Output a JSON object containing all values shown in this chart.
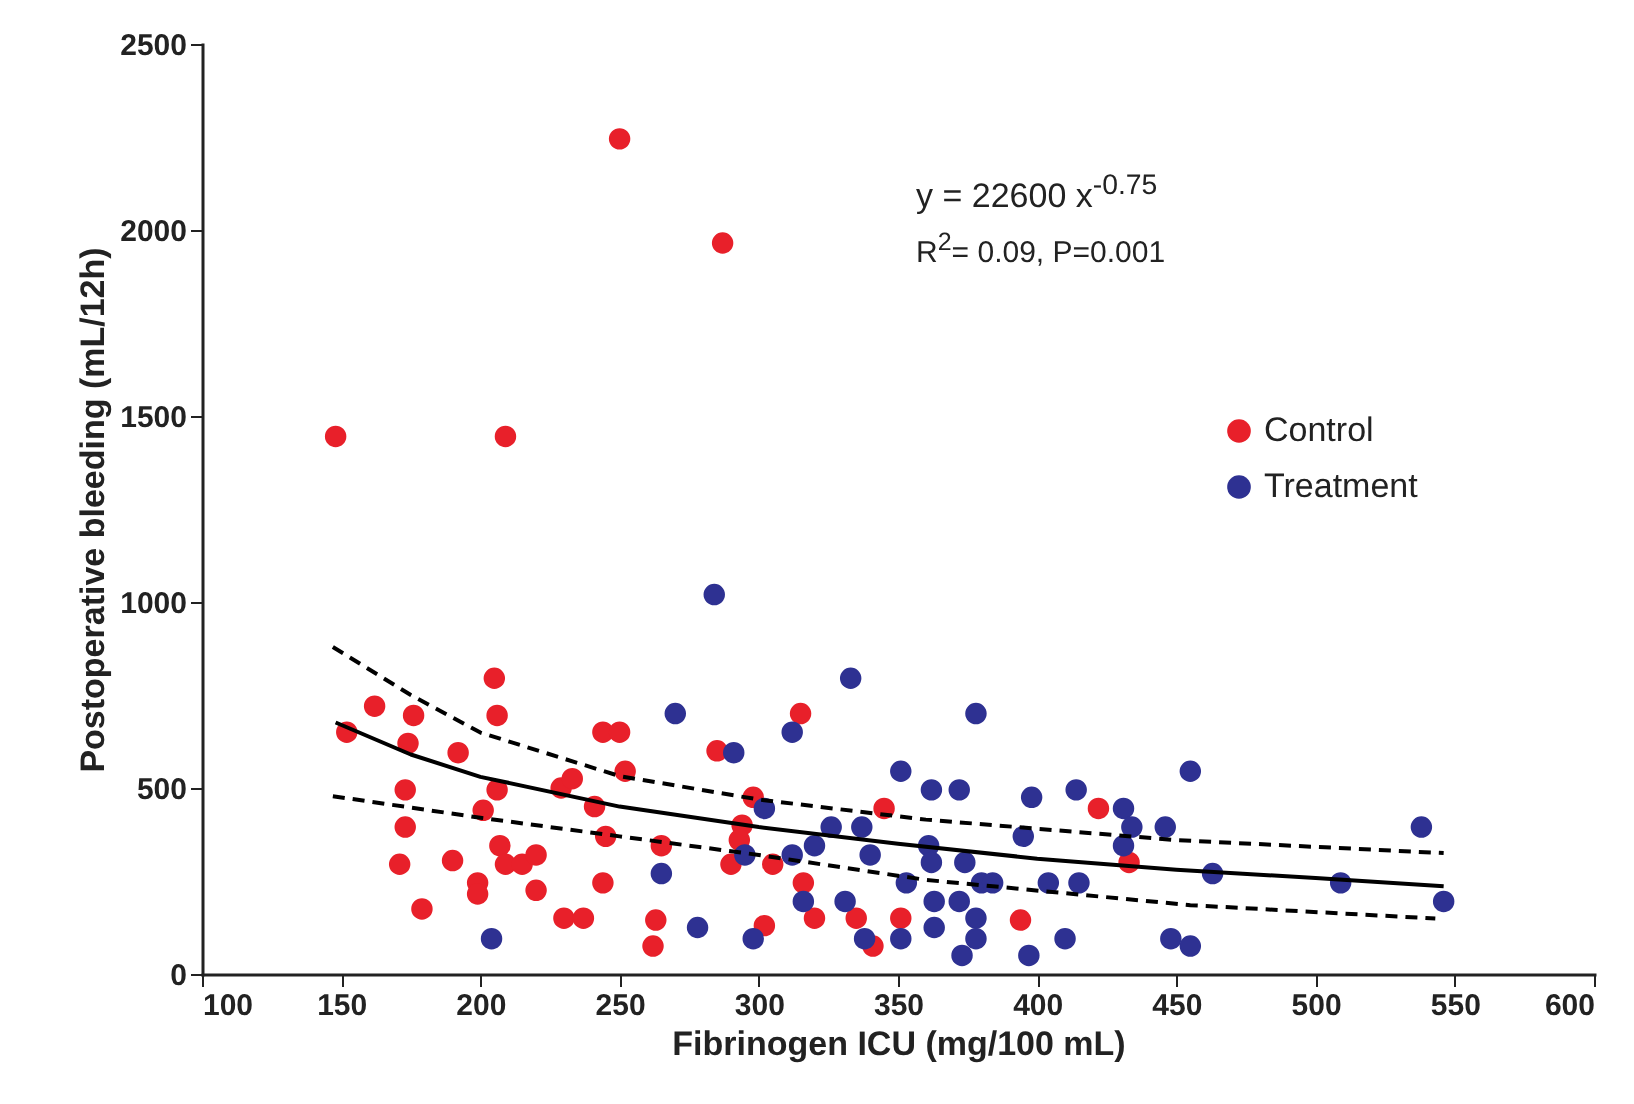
{
  "chart_data": {
    "type": "scatter",
    "xlabel": "Fibrinogen ICU (mg/100 mL)",
    "ylabel": "Postoperative bleeding (mL/12h)",
    "xlim": [
      100,
      600
    ],
    "xticks": [
      100,
      150,
      200,
      250,
      300,
      350,
      400,
      450,
      500,
      550,
      600
    ],
    "ylim": [
      0,
      2500
    ],
    "yticks": [
      0,
      500,
      1000,
      1500,
      2000,
      2500
    ],
    "grid": false,
    "legend": "top right",
    "annotations": [
      "y = 22600 x$^{-0.75}$",
      "R$^{2}$= 0.09, P=0.001"
    ],
    "series": [
      {
        "name": "Control",
        "color": "#e8202a",
        "marker": "circle",
        "x": [
          148,
          209,
          250,
          287,
          152,
          162,
          176,
          174,
          173,
          173,
          171,
          179,
          190,
          192,
          205,
          206,
          206,
          201,
          207,
          209,
          215,
          220,
          199,
          199,
          220,
          230,
          237,
          229,
          233,
          244,
          250,
          252,
          241,
          245,
          244,
          265,
          263,
          262,
          315,
          285,
          298,
          294,
          293,
          290,
          305,
          316,
          320,
          302,
          335,
          341,
          345,
          351,
          394,
          422,
          433
        ],
        "values": [
          1445,
          1445,
          2245,
          1965,
          650,
          720,
          695,
          620,
          495,
          395,
          295,
          175,
          305,
          595,
          795,
          695,
          495,
          440,
          345,
          295,
          295,
          320,
          245,
          215,
          225,
          150,
          150,
          500,
          525,
          650,
          650,
          545,
          450,
          370,
          245,
          345,
          145,
          75,
          700,
          600,
          475,
          400,
          360,
          295,
          295,
          245,
          150,
          130,
          150,
          75,
          445,
          150,
          145,
          445,
          300
        ]
      },
      {
        "name": "Treatment",
        "color": "#2e3192",
        "marker": "circle",
        "x": [
          284,
          270,
          333,
          378,
          312,
          291,
          302,
          295,
          265,
          278,
          298,
          312,
          320,
          326,
          337,
          340,
          316,
          331,
          338,
          351,
          351,
          362,
          372,
          361,
          362,
          374,
          353,
          363,
          372,
          363,
          373,
          378,
          378,
          380,
          384,
          395,
          398,
          397,
          404,
          415,
          410,
          414,
          431,
          434,
          431,
          446,
          455,
          463,
          509,
          538,
          546,
          448,
          455,
          204
        ],
        "values": [
          1020,
          700,
          795,
          700,
          650,
          595,
          445,
          320,
          270,
          125,
          95,
          320,
          345,
          395,
          395,
          320,
          195,
          195,
          95,
          95,
          545,
          495,
          495,
          345,
          300,
          300,
          245,
          195,
          195,
          125,
          50,
          150,
          95,
          245,
          245,
          370,
          475,
          50,
          245,
          245,
          95,
          495,
          445,
          395,
          345,
          395,
          545,
          270,
          245,
          395,
          195,
          95,
          75,
          95
        ]
      },
      {
        "type": "line",
        "color": "#000000",
        "line_style": "solid",
        "x": [
          148,
          175,
          200,
          250,
          300,
          350,
          400,
          450,
          500,
          546
        ],
        "values": [
          676,
          590,
          530,
          450,
          395,
          350,
          310,
          280,
          258,
          236
        ]
      },
      {
        "type": "line",
        "color": "#000000",
        "line_style": "dashed",
        "x": [
          147,
          175,
          200,
          250,
          300,
          360,
          450,
          546
        ],
        "values": [
          879,
          750,
          649,
          532,
          469,
          415,
          360,
          325
        ]
      },
      {
        "type": "line",
        "color": "#000000",
        "line_style": "dashed",
        "x": [
          147,
          200,
          250,
          300,
          360,
          455,
          543
        ],
        "values": [
          478,
          420,
          370,
          320,
          253,
          185,
          149
        ]
      }
    ]
  }
}
